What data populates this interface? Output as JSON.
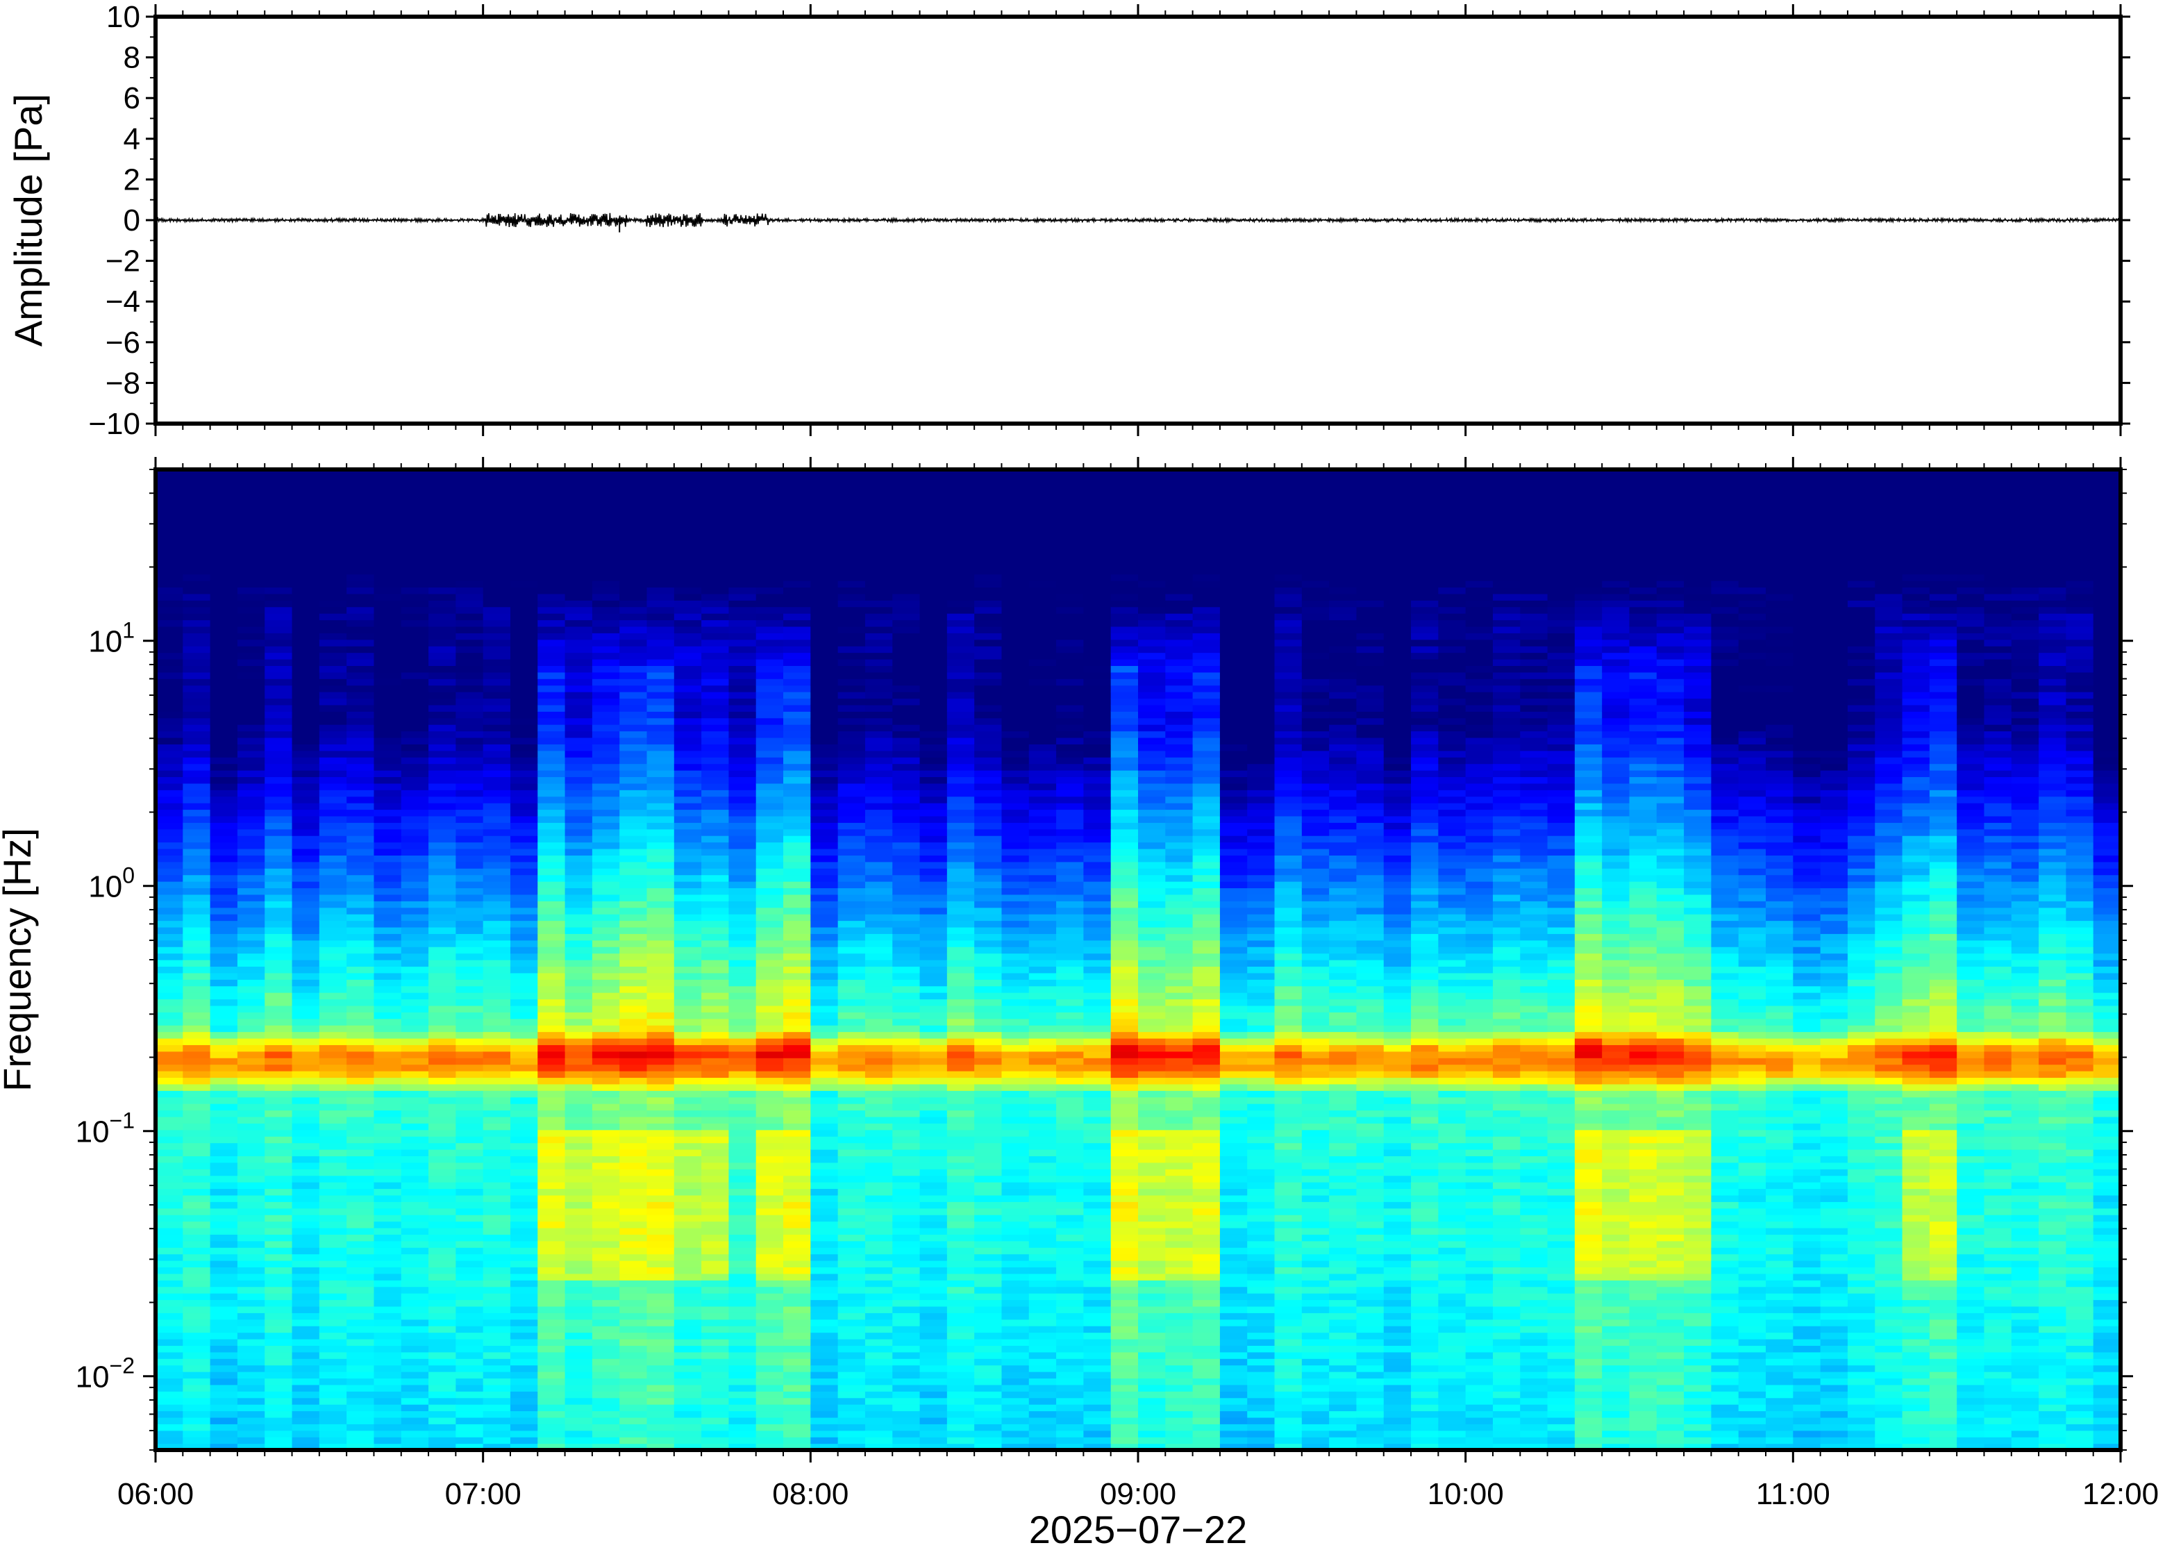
{
  "chart_data": [
    {
      "type": "line",
      "panel": "waveform",
      "ylabel": "Amplitude [Pa]",
      "ylim": [
        -10,
        10
      ],
      "yticks": [
        "10",
        "8",
        "6",
        "4",
        "2",
        "0",
        "−2",
        "−4",
        "−6",
        "−8",
        "−10"
      ],
      "xlim": [
        "2025-07-22 06:00",
        "2025-07-22 12:00"
      ],
      "series": [
        {
          "color": "#000000",
          "x": [
            "06:00",
            "06:30",
            "07:00",
            "07:15",
            "07:25",
            "07:35",
            "07:45",
            "08:00",
            "08:30",
            "09:00",
            "09:30",
            "10:00",
            "10:30",
            "11:00",
            "11:30",
            "12:00"
          ],
          "y": [
            0.0,
            0.0,
            0.1,
            0.15,
            0.2,
            -0.4,
            0.15,
            0.05,
            0.05,
            0.05,
            0.05,
            0.05,
            0.05,
            0.05,
            0.05,
            0.0
          ]
        }
      ]
    },
    {
      "type": "heatmap",
      "panel": "spectrogram",
      "ylabel": "Frequency [Hz]",
      "yscale": "log",
      "ylim": [
        0.005,
        50
      ],
      "yticks": [
        {
          "value": 0.01,
          "base": "10",
          "exp": "−2"
        },
        {
          "value": 0.1,
          "base": "10",
          "exp": "−1"
        },
        {
          "value": 1,
          "base": "10",
          "exp": "0"
        },
        {
          "value": 10,
          "base": "10",
          "exp": "1"
        }
      ],
      "xlabel": "2025−07−22",
      "xticks": [
        "06:00",
        "07:00",
        "08:00",
        "09:00",
        "10:00",
        "11:00",
        "12:00"
      ],
      "colormap": "jet",
      "colorscale_range": [
        0,
        1
      ],
      "time_columns": 72,
      "peak_band_hz": [
        0.15,
        0.25
      ],
      "broadband_activity_intervals": [
        "07:10-07:45",
        "07:50-08:00",
        "08:55-09:15",
        "10:20-10:45",
        "11:20-11:30"
      ]
    }
  ]
}
